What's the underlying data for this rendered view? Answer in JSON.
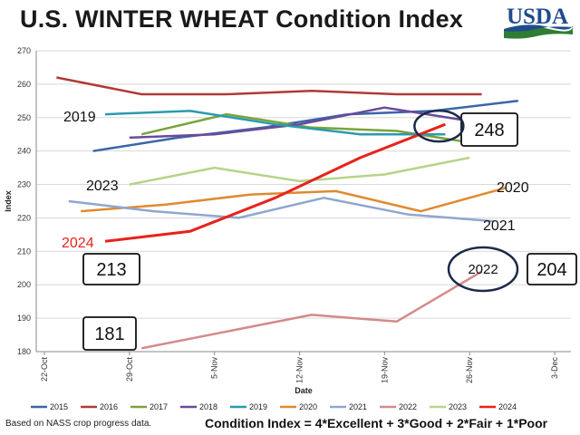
{
  "header": {
    "title": "U.S. WINTER WHEAT Condition Index",
    "logo_text": "USDA"
  },
  "footer": {
    "note": "Based on NASS crop progress data.",
    "formula": "Condition Index = 4*Excellent + 3*Good + 2*Fair + 1*Poor"
  },
  "chart_data": {
    "type": "line",
    "title": "U.S. WINTER WHEAT Condition Index",
    "xlabel": "Date",
    "ylabel": "Index",
    "x_tick_labels": [
      "22-Oct",
      "29-Oct",
      "5-Nov",
      "12-Nov",
      "19-Nov",
      "26-Nov",
      "3-Dec"
    ],
    "ylim": [
      180,
      270
    ],
    "yticks": [
      180,
      190,
      200,
      210,
      220,
      230,
      240,
      250,
      260,
      270
    ],
    "grid": "horizontal",
    "legend_position": "bottom",
    "series": [
      {
        "name": "2015",
        "color": "#3a66a8",
        "points": [
          [
            "26-Oct",
            240
          ],
          [
            "2-Nov",
            244
          ],
          [
            "9-Nov",
            247
          ],
          [
            "16-Nov",
            251
          ],
          [
            "23-Nov",
            252
          ],
          [
            "30-Nov",
            255
          ]
        ]
      },
      {
        "name": "2016",
        "color": "#b03a36",
        "points": [
          [
            "23-Oct",
            262
          ],
          [
            "30-Oct",
            257
          ],
          [
            "6-Nov",
            257
          ],
          [
            "13-Nov",
            258
          ],
          [
            "20-Nov",
            257
          ],
          [
            "27-Nov",
            257
          ]
        ]
      },
      {
        "name": "2017",
        "color": "#7aa33a",
        "points": [
          [
            "30-Oct",
            245
          ],
          [
            "6-Nov",
            251
          ],
          [
            "13-Nov",
            247
          ],
          [
            "20-Nov",
            246
          ],
          [
            "27-Nov",
            242
          ]
        ]
      },
      {
        "name": "2018",
        "color": "#6a4a9a",
        "points": [
          [
            "29-Oct",
            244
          ],
          [
            "5-Nov",
            245
          ],
          [
            "12-Nov",
            248
          ],
          [
            "19-Nov",
            253
          ],
          [
            "26-Nov",
            249
          ]
        ]
      },
      {
        "name": "2019",
        "color": "#2a9ab0",
        "points": [
          [
            "27-Oct",
            251
          ],
          [
            "3-Nov",
            252
          ],
          [
            "10-Nov",
            248
          ],
          [
            "17-Nov",
            245
          ],
          [
            "24-Nov",
            245
          ]
        ]
      },
      {
        "name": "2020",
        "color": "#e08a30",
        "points": [
          [
            "25-Oct",
            222
          ],
          [
            "1-Nov",
            224
          ],
          [
            "8-Nov",
            227
          ],
          [
            "15-Nov",
            228
          ],
          [
            "22-Nov",
            222
          ],
          [
            "29-Nov",
            229
          ]
        ]
      },
      {
        "name": "2021",
        "color": "#8fa6d0",
        "points": [
          [
            "24-Oct",
            225
          ],
          [
            "31-Oct",
            222
          ],
          [
            "7-Nov",
            220
          ],
          [
            "14-Nov",
            226
          ],
          [
            "21-Nov",
            221
          ],
          [
            "28-Nov",
            219
          ]
        ]
      },
      {
        "name": "2022",
        "color": "#d48a8a",
        "points": [
          [
            "30-Oct",
            181
          ],
          [
            "13-Nov",
            191
          ],
          [
            "20-Nov",
            189
          ],
          [
            "27-Nov",
            204
          ]
        ]
      },
      {
        "name": "2023",
        "color": "#b6d48a",
        "points": [
          [
            "29-Oct",
            230
          ],
          [
            "5-Nov",
            235
          ],
          [
            "12-Nov",
            231
          ],
          [
            "19-Nov",
            233
          ],
          [
            "26-Nov",
            238
          ]
        ]
      },
      {
        "name": "2024",
        "color": "#e8221c",
        "points": [
          [
            "27-Oct",
            213
          ],
          [
            "3-Nov",
            216
          ],
          [
            "10-Nov",
            226
          ],
          [
            "17-Nov",
            238
          ],
          [
            "24-Nov",
            248
          ]
        ]
      }
    ],
    "annotations": [
      {
        "text": "2019",
        "style": "plain"
      },
      {
        "text": "2023",
        "style": "plain"
      },
      {
        "text": "2024",
        "style": "plain",
        "color": "#e8221c"
      },
      {
        "text": "2020",
        "style": "plain"
      },
      {
        "text": "2021",
        "style": "plain"
      },
      {
        "text": "248",
        "style": "boxed"
      },
      {
        "text": "213",
        "style": "boxed"
      },
      {
        "text": "181",
        "style": "boxed"
      },
      {
        "text": "204",
        "style": "boxed"
      },
      {
        "text": "2022",
        "style": "oval"
      }
    ]
  }
}
